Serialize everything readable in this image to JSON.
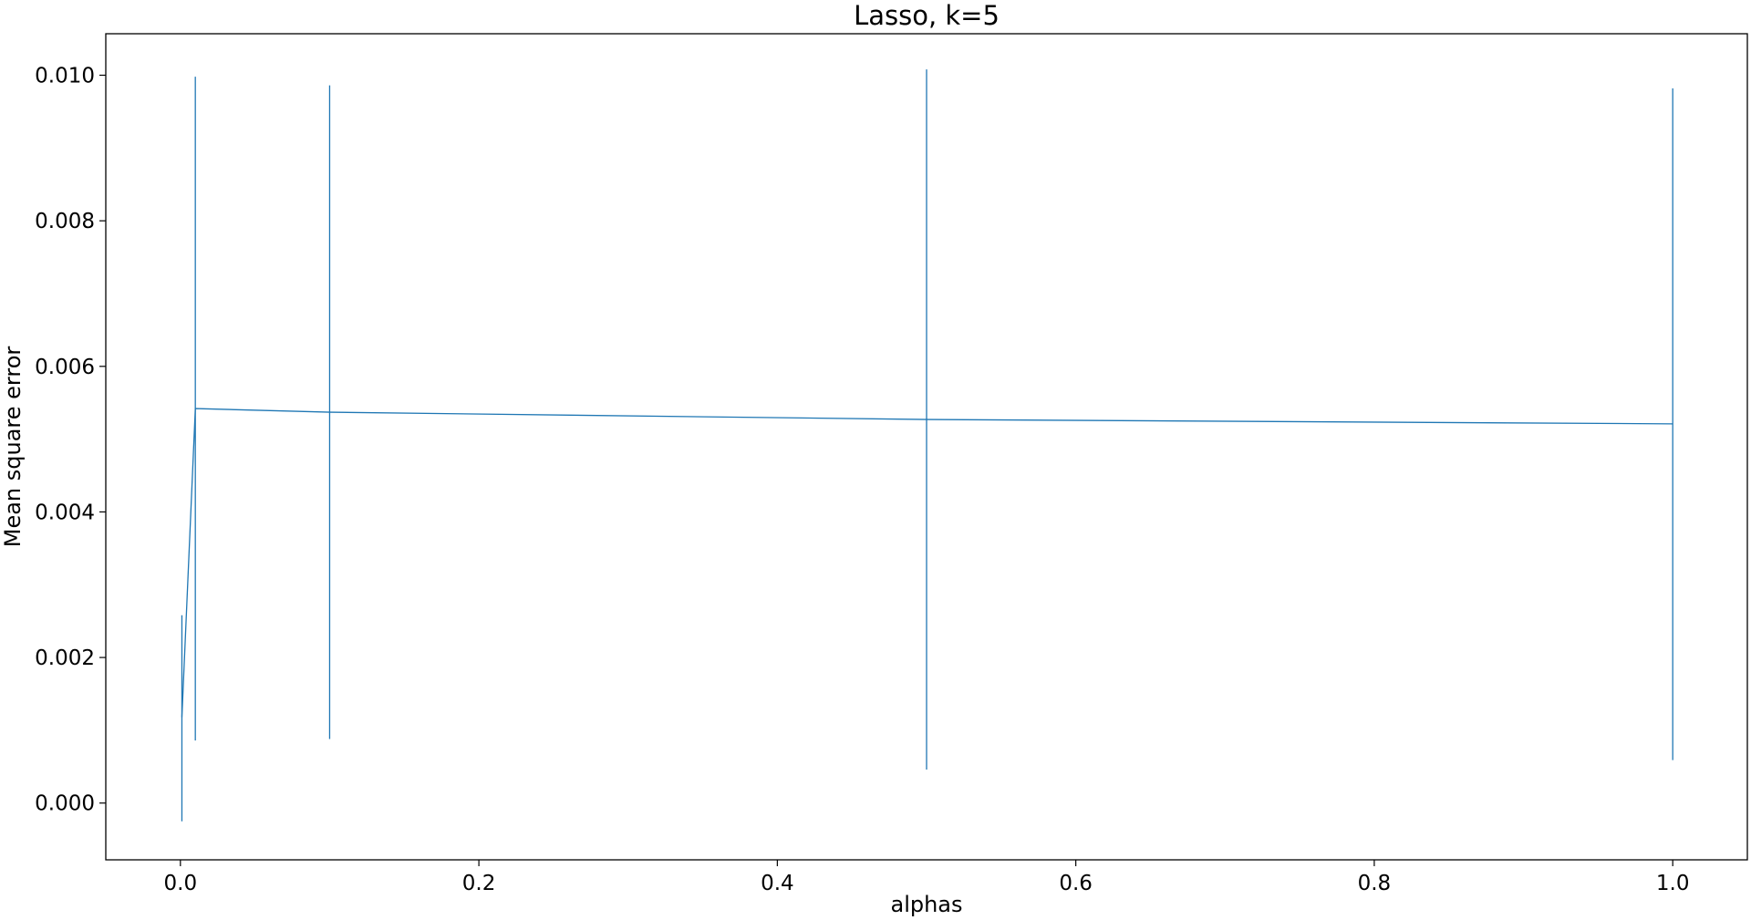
{
  "chart_data": {
    "type": "line",
    "title": "Lasso, k=5",
    "xlabel": "alphas",
    "ylabel": "Mean square error",
    "xlim": [
      -0.05,
      1.05
    ],
    "ylim": [
      -0.00078,
      0.01057
    ],
    "xticks": [
      0.0,
      0.2,
      0.4,
      0.6,
      0.8,
      1.0
    ],
    "xtick_labels": [
      "0.0",
      "0.2",
      "0.4",
      "0.6",
      "0.8",
      "1.0"
    ],
    "yticks": [
      0.0,
      0.002,
      0.004,
      0.006,
      0.008,
      0.01
    ],
    "ytick_labels": [
      "0.000",
      "0.002",
      "0.004",
      "0.006",
      "0.008",
      "0.010"
    ],
    "grid": false,
    "series": [
      {
        "color": "#1f77b4",
        "points": [
          {
            "x": 0.001,
            "y": 0.00118,
            "yerr_low": -0.00025,
            "yerr_high": 0.00258
          },
          {
            "x": 0.01,
            "y": 0.00542,
            "yerr_low": 0.00086,
            "yerr_high": 0.00998
          },
          {
            "x": 0.1,
            "y": 0.00537,
            "yerr_low": 0.00088,
            "yerr_high": 0.00986
          },
          {
            "x": 0.5,
            "y": 0.00527,
            "yerr_low": 0.00046,
            "yerr_high": 0.01008
          },
          {
            "x": 1.0,
            "y": 0.00521,
            "yerr_low": 0.00059,
            "yerr_high": 0.00982
          }
        ]
      }
    ]
  }
}
